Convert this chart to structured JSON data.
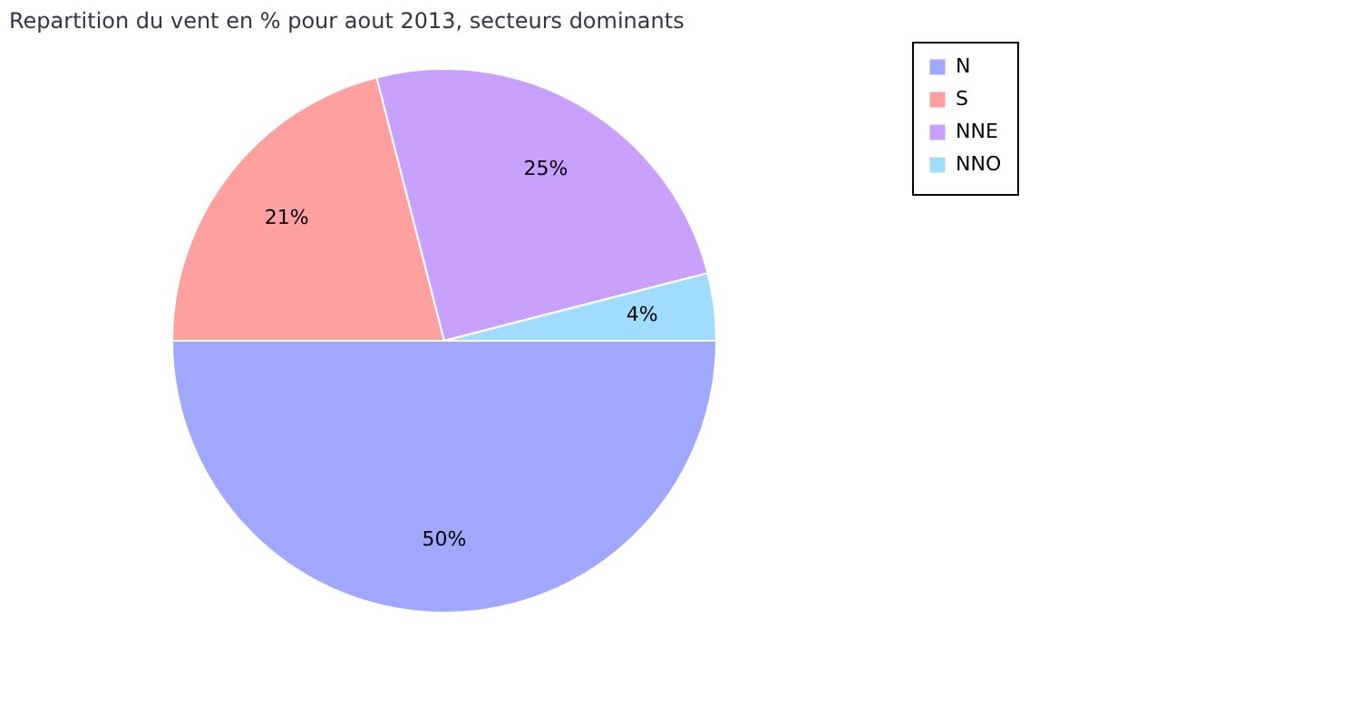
{
  "chart_data": {
    "type": "pie",
    "title": "Repartition du vent en % pour aout 2013, secteurs dominants",
    "categories": [
      "N",
      "S",
      "NNE",
      "NNO"
    ],
    "values": [
      50,
      21,
      25,
      4
    ],
    "colors": [
      "#a0a8fe",
      "#fea0a0",
      "#c8a0fe",
      "#a0dcfe"
    ],
    "value_labels": [
      "50%",
      "21%",
      "25%",
      "4%"
    ],
    "legend": "right"
  }
}
